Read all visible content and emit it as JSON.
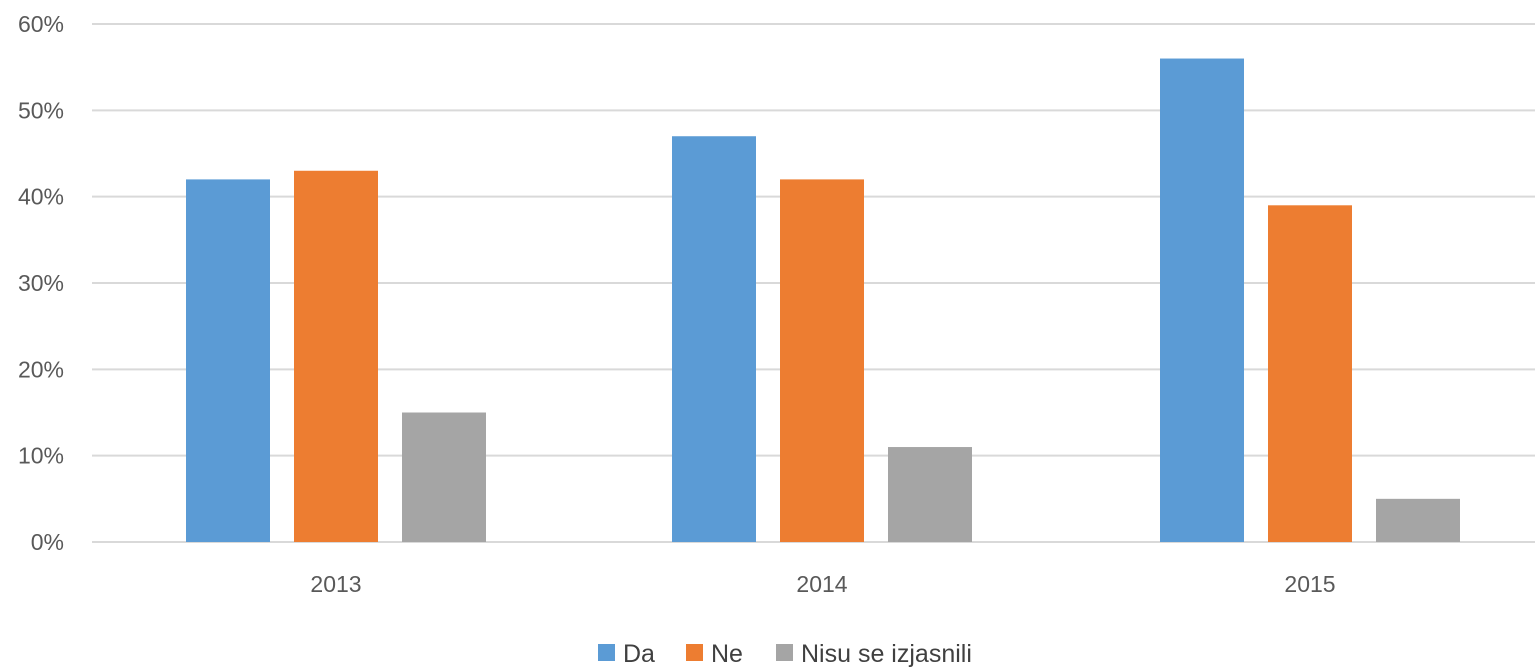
{
  "chart_data": {
    "type": "bar",
    "categories": [
      "2013",
      "2014",
      "2015"
    ],
    "series": [
      {
        "name": "Da",
        "values": [
          42,
          47,
          56
        ],
        "color": "#5B9BD5"
      },
      {
        "name": "Ne",
        "values": [
          43,
          42,
          39
        ],
        "color": "#ED7D31"
      },
      {
        "name": "Nisu se izjasnili",
        "values": [
          15,
          11,
          5
        ],
        "color": "#A5A5A5"
      }
    ],
    "ylim": [
      0,
      60
    ],
    "yticks": [
      "0%",
      "10%",
      "20%",
      "30%",
      "40%",
      "50%",
      "60%"
    ],
    "ytick_values": [
      0,
      10,
      20,
      30,
      40,
      50,
      60
    ],
    "grid": true,
    "legend_position": "bottom",
    "title": "",
    "xlabel": "",
    "ylabel": "",
    "gridline_color": "#D9D9D9"
  }
}
